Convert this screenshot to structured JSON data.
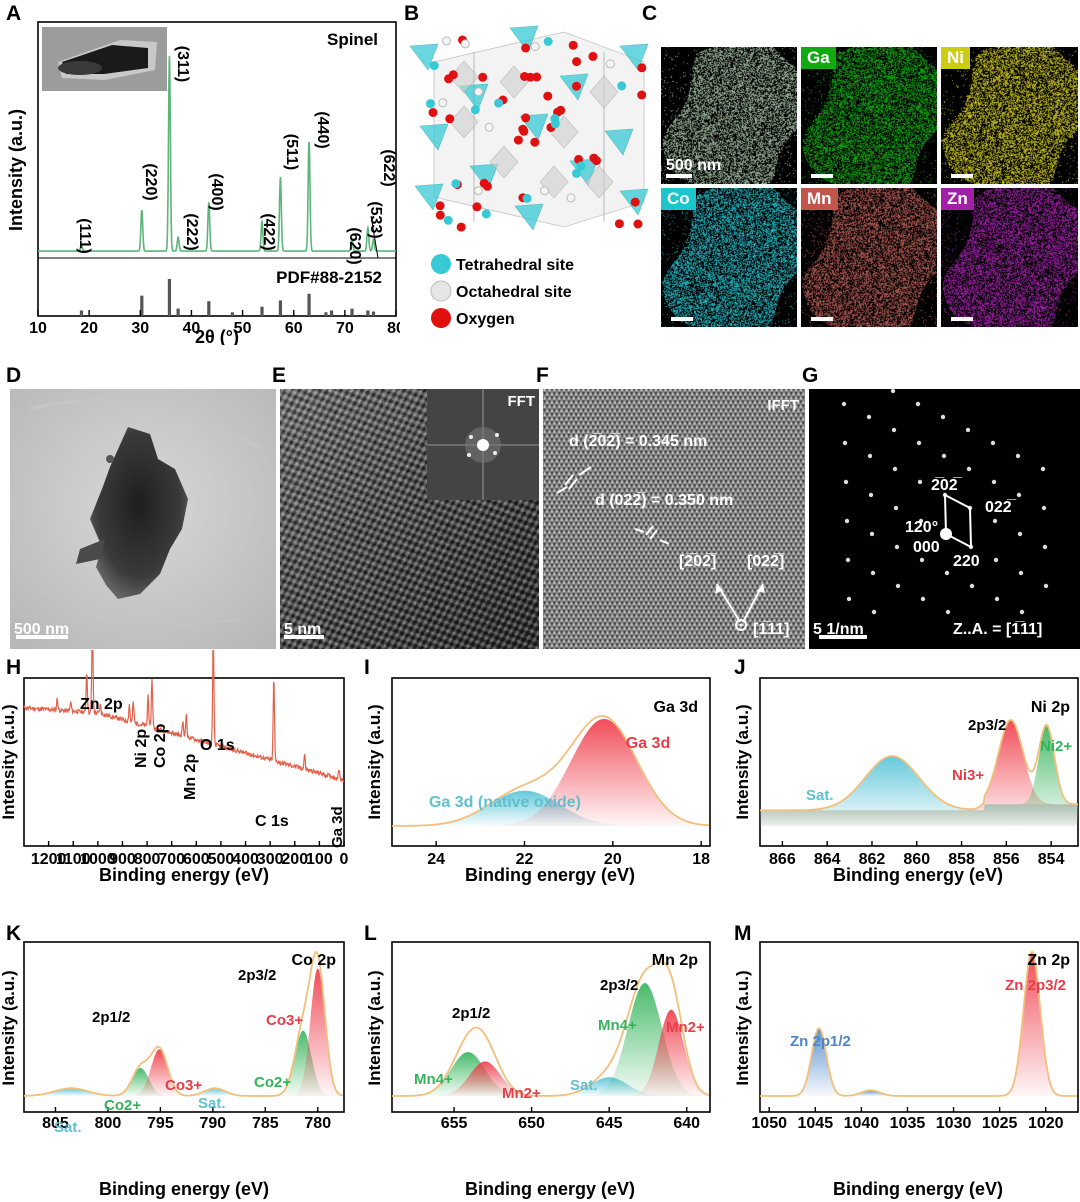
{
  "panels": {
    "A": {
      "label": "A",
      "title": "Spinel",
      "reference": "PDF#88-2152",
      "xlabel": "2θ (°)",
      "ylabel": "Intensity (a.u.)",
      "xticks": [
        "10",
        "20",
        "30",
        "40",
        "50",
        "60",
        "70",
        "80"
      ],
      "peak_labels": [
        "(111)",
        "(220)",
        "(311)",
        "(222)",
        "(400)",
        "(422)",
        "(511)",
        "(440)",
        "(620)",
        "(533)",
        "(622)"
      ]
    },
    "B": {
      "label": "B",
      "legend": [
        "Tetrahedral site",
        "Octahedral site",
        "Oxygen"
      ],
      "colors": {
        "tetrahedral": "#37c9d6",
        "octahedral": "#d8d8d8",
        "oxygen": "#e01010"
      }
    },
    "C": {
      "label": "C",
      "maps": [
        {
          "name": "",
          "color": "#9bb39a",
          "label_bg": "transparent"
        },
        {
          "name": "Ga",
          "color": "#11aa11",
          "label_bg": "#11aa11"
        },
        {
          "name": "Ni",
          "color": "#c9c21c",
          "label_bg": "#cccc11"
        },
        {
          "name": "Co",
          "color": "#22b8c4",
          "label_bg": "#1cc4cc"
        },
        {
          "name": "Mn",
          "color": "#b05a52",
          "label_bg": "#c0554c"
        },
        {
          "name": "Zn",
          "color": "#a020a8",
          "label_bg": "#a020a8"
        }
      ],
      "scalebar": "500 nm"
    },
    "D": {
      "label": "D",
      "scalebar": "500 nm"
    },
    "E": {
      "label": "E",
      "scalebar": "5 nm",
      "inset": "FFT"
    },
    "F": {
      "label": "F",
      "inset": "IFFT",
      "d1": "d (2̅02̅) = 0.345 nm",
      "d2": "d (022̅) = 0.350 nm",
      "dir1": "[2̅02̅]",
      "dir2": "[022̅]",
      "zone": "[1̅11]"
    },
    "G": {
      "label": "G",
      "scalebar": "5 1/nm",
      "zone": "Z..A. = [1̅11]",
      "spots": [
        "2̅02̅",
        "022̅",
        "220",
        "000",
        "120°"
      ]
    },
    "H": {
      "label": "H",
      "xlabel": "Binding energy (eV)",
      "ylabel": "Intensity (a.u.)",
      "xticks": [
        "1200",
        "1100",
        "1000",
        "900",
        "800",
        "700",
        "600",
        "500",
        "400",
        "300",
        "200",
        "100",
        "0"
      ],
      "peaks": [
        "Zn 2p",
        "Ni 2p",
        "Co 2p",
        "Mn 2p",
        "O 1s",
        "C 1s",
        "Ga 3d"
      ]
    },
    "I": {
      "label": "I",
      "title": "Ga 3d",
      "xlabel": "Binding energy (eV)",
      "ylabel": "Intensity (a.u.)",
      "xticks": [
        "24",
        "22",
        "20",
        "18"
      ],
      "comp1": "Ga 3d",
      "comp2": "Ga 3d (native oxide)"
    },
    "J": {
      "label": "J",
      "title": "Ni 2p",
      "xlabel": "Binding energy (eV)",
      "ylabel": "Intensity (a.u.)",
      "xticks": [
        "866",
        "864",
        "862",
        "860",
        "858",
        "856",
        "854"
      ],
      "sub": "2p3/2",
      "c_ni3": "Ni3+",
      "c_ni2": "Ni2+",
      "sat": "Sat."
    },
    "K": {
      "label": "K",
      "title": "Co 2p",
      "xlabel": "Binding energy (eV)",
      "ylabel": "Intensity (a.u.)",
      "xticks": [
        "805",
        "800",
        "795",
        "790",
        "785",
        "780"
      ],
      "sub1": "2p1/2",
      "sub3": "2p3/2",
      "co3": "Co3+",
      "co2": "Co2+",
      "sat": "Sat."
    },
    "L": {
      "label": "L",
      "title": "Mn 2p",
      "xlabel": "Binding energy (eV)",
      "ylabel": "Intensity (a.u.)",
      "xticks": [
        "655",
        "650",
        "645",
        "640"
      ],
      "sub1": "2p1/2",
      "sub3": "2p3/2",
      "mn4": "Mn4+",
      "mn2": "Mn2+",
      "sat": "Sat."
    },
    "M": {
      "label": "M",
      "title": "Zn 2p",
      "xlabel": "Binding energy (eV)",
      "ylabel": "Intensity (a.u.)",
      "xticks": [
        "1050",
        "1045",
        "1040",
        "1035",
        "1030",
        "1025",
        "1020"
      ],
      "z1": "Zn 2p1/2",
      "z3": "Zn 2p3/2"
    }
  },
  "chart_data": [
    {
      "type": "line",
      "panel": "A",
      "title": "Spinel",
      "xlabel": "2θ (°)",
      "ylabel": "Intensity (a.u.)",
      "xlim": [
        10,
        80
      ],
      "series": [
        {
          "name": "",
          "x": [
            18.5,
            30.3,
            35.7,
            37.4,
            43.4,
            53.8,
            57.4,
            63.0,
            71.4,
            74.5,
            75.6
          ],
          "y": [
            3,
            21,
            100,
            7,
            25,
            15,
            38,
            56,
            6,
            12,
            6
          ]
        }
      ],
      "reference_PDF": {
        "x": [
          18.5,
          30.3,
          35.7,
          37.4,
          43.4,
          48.0,
          53.8,
          57.4,
          63.0,
          66.3,
          67.4,
          71.4,
          74.5,
          75.6
        ],
        "y": [
          15,
          55,
          100,
          20,
          40,
          10,
          25,
          42,
          60,
          10,
          15,
          20,
          15,
          12
        ]
      }
    },
    {
      "type": "line",
      "panel": "H",
      "xlabel": "Binding energy (eV)",
      "ylabel": "Intensity (a.u.)",
      "xlim": [
        1300,
        0
      ],
      "peaks_x": {
        "Zn 2p": 1022,
        "Ni 2p": 856,
        "Co 2p": 780,
        "Mn 2p": 641,
        "O 1s": 530,
        "C 1s": 285,
        "Ga 3d": 20
      }
    },
    {
      "type": "area",
      "panel": "I",
      "xlim": [
        25,
        17.8
      ],
      "components": [
        {
          "name": "Ga 3d",
          "center": 20.2,
          "height": 100
        },
        {
          "name": "Ga 3d (native oxide)",
          "center": 22.0,
          "height": 35
        }
      ]
    },
    {
      "type": "area",
      "panel": "J",
      "xlim": [
        867,
        852.8
      ],
      "components": [
        {
          "name": "Sat.",
          "center": 861.1
        },
        {
          "name": "Ni3+",
          "center": 855.8
        },
        {
          "name": "Ni2+",
          "center": 854.2
        }
      ]
    },
    {
      "type": "area",
      "panel": "K",
      "xlim": [
        808,
        777.5
      ],
      "components": [
        {
          "name": "Sat.",
          "center": 803.5
        },
        {
          "name": "Co2+",
          "center": 796.9
        },
        {
          "name": "Co3+",
          "center": 795.1
        },
        {
          "name": "Sat.",
          "center": 789.8
        },
        {
          "name": "Co2+",
          "center": 781.4
        },
        {
          "name": "Co3+",
          "center": 780.0
        }
      ]
    },
    {
      "type": "area",
      "panel": "L",
      "xlim": [
        659,
        638.5
      ],
      "components": [
        {
          "name": "Mn4+",
          "center": 654.1
        },
        {
          "name": "Mn2+",
          "center": 653.0
        },
        {
          "name": "Sat.",
          "center": 645.0
        },
        {
          "name": "Mn4+",
          "center": 642.7
        },
        {
          "name": "Mn2+",
          "center": 641.0
        }
      ]
    },
    {
      "type": "area",
      "panel": "M",
      "xlim": [
        1051,
        1016.5
      ],
      "components": [
        {
          "name": "Zn 2p1/2",
          "center": 1044.6
        },
        {
          "name": "Zn 2p3/2",
          "center": 1021.5
        }
      ]
    }
  ]
}
